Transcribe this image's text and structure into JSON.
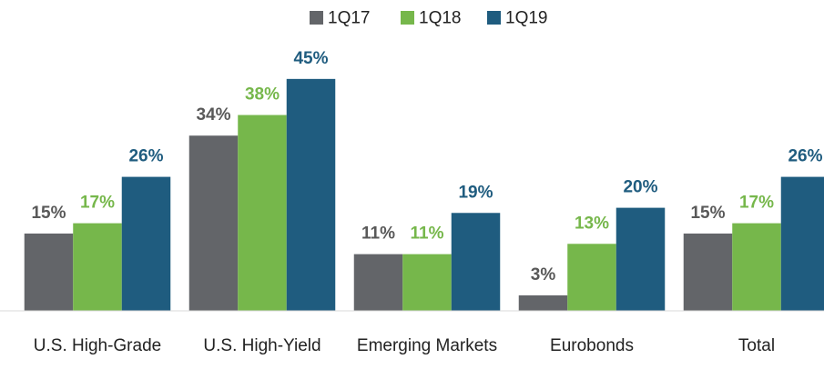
{
  "chart_data": {
    "type": "bar",
    "categories": [
      "U.S. High-Grade",
      "U.S. High-Yield",
      "Emerging Markets",
      "Eurobonds",
      "Total"
    ],
    "series": [
      {
        "name": "1Q17",
        "color": "#636569",
        "label_color": "#595959",
        "values": [
          15,
          34,
          11,
          3,
          15
        ],
        "value_labels": [
          "15%",
          "34%",
          "11%",
          "3%",
          "15%"
        ]
      },
      {
        "name": "1Q18",
        "color": "#76b74b",
        "label_color": "#76b74b",
        "values": [
          17,
          38,
          11,
          13,
          17
        ],
        "value_labels": [
          "17%",
          "38%",
          "11%",
          "13%",
          "17%"
        ]
      },
      {
        "name": "1Q19",
        "color": "#1f5c7f",
        "label_color": "#1f5c7f",
        "values": [
          26,
          45,
          19,
          20,
          26
        ],
        "value_labels": [
          "26%",
          "45%",
          "19%",
          "20%",
          "26%"
        ]
      }
    ],
    "legend": "top"
  }
}
